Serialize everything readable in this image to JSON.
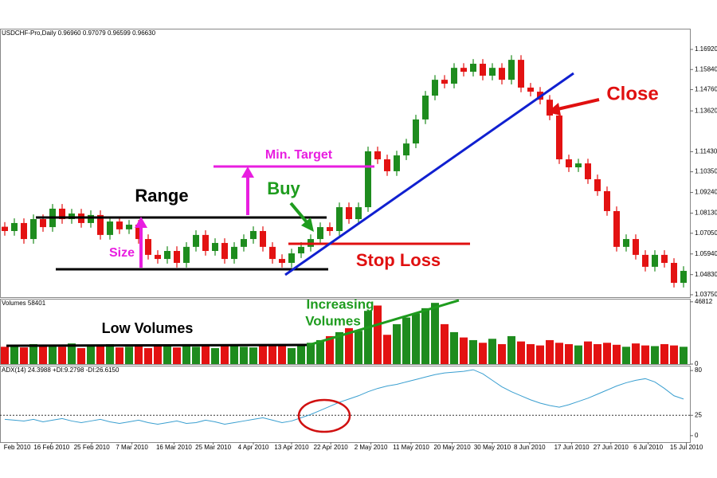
{
  "chart_data": [
    {
      "type": "candlestick",
      "title": "USDCHF-Pro,Daily  0.96960 0.97079 0.96599 0.96630",
      "up_color": "#1e8c1e",
      "down_color": "#e31212",
      "ylim": [
        1.0362,
        1.1799
      ],
      "yticks": [
        {
          "value": 1.0375,
          "label": "1.03750"
        },
        {
          "value": 1.0483,
          "label": "1.04830"
        },
        {
          "value": 1.0594,
          "label": "1.05940"
        },
        {
          "value": 1.0705,
          "label": "1.07050"
        },
        {
          "value": 1.0813,
          "label": "1.08130"
        },
        {
          "value": 1.0924,
          "label": "1.09240"
        },
        {
          "value": 1.1035,
          "label": "1.10350"
        },
        {
          "value": 1.1143,
          "label": "1.11430"
        },
        {
          "value": 1.1362,
          "label": "1.13620"
        },
        {
          "value": 1.1476,
          "label": "1.14760"
        },
        {
          "value": 1.1584,
          "label": "1.15840"
        },
        {
          "value": 1.1692,
          "label": "1.16920"
        }
      ],
      "open": [
        1.074,
        1.0717,
        1.076,
        1.0674,
        1.0781,
        1.0738,
        1.0837,
        1.0781,
        1.0811,
        1.076,
        1.0803,
        1.0696,
        1.0768,
        1.0726,
        1.0751,
        1.0674,
        1.0589,
        1.0567,
        1.061,
        1.0546,
        1.0632,
        1.0696,
        1.061,
        1.0653,
        1.0567,
        1.0632,
        1.0674,
        1.0717,
        1.0632,
        1.0567,
        1.0546,
        1.0597,
        1.0632,
        1.0674,
        1.0738,
        1.0717,
        1.0845,
        1.0781,
        1.0845,
        1.1145,
        1.1102,
        1.1038,
        1.1123,
        1.1187,
        1.1316,
        1.1444,
        1.1529,
        1.1508,
        1.1593,
        1.1572,
        1.1615,
        1.1551,
        1.1593,
        1.1529,
        1.1636,
        1.1487,
        1.1465,
        1.1422,
        1.1337,
        1.1102,
        1.1059,
        1.108,
        1.0995,
        1.0931,
        1.0824,
        1.0632,
        1.0674,
        1.0589,
        1.0525,
        1.0589,
        1.0546,
        1.0439
      ],
      "high": [
        1.0765,
        1.0785,
        1.0785,
        1.0806,
        1.0806,
        1.0862,
        1.0862,
        1.0836,
        1.0836,
        1.0828,
        1.0828,
        1.0793,
        1.0793,
        1.0776,
        1.0776,
        1.0699,
        1.0614,
        1.0635,
        1.0635,
        1.0657,
        1.0721,
        1.0721,
        1.0678,
        1.0678,
        1.0657,
        1.0699,
        1.0742,
        1.0742,
        1.0657,
        1.0592,
        1.0622,
        1.0657,
        1.0699,
        1.0763,
        1.0763,
        1.087,
        1.087,
        1.087,
        1.117,
        1.117,
        1.1127,
        1.1148,
        1.1212,
        1.1341,
        1.1469,
        1.1554,
        1.1554,
        1.1618,
        1.1618,
        1.164,
        1.164,
        1.1618,
        1.1618,
        1.1661,
        1.1661,
        1.1512,
        1.149,
        1.1447,
        1.1362,
        1.1127,
        1.1105,
        1.1105,
        1.102,
        1.0956,
        1.0849,
        1.0699,
        1.0699,
        1.0614,
        1.0614,
        1.0614,
        1.0571,
        1.0528
      ],
      "low": [
        1.0692,
        1.0692,
        1.0649,
        1.0649,
        1.0713,
        1.0713,
        1.0756,
        1.0756,
        1.0735,
        1.0735,
        1.0671,
        1.0671,
        1.0701,
        1.0701,
        1.0649,
        1.0564,
        1.0542,
        1.0542,
        1.0521,
        1.0521,
        1.0607,
        1.0585,
        1.0585,
        1.0542,
        1.0542,
        1.0607,
        1.0649,
        1.0607,
        1.0542,
        1.0521,
        1.0521,
        1.0572,
        1.0607,
        1.0649,
        1.0692,
        1.0692,
        1.0756,
        1.0756,
        1.082,
        1.1077,
        1.1013,
        1.1013,
        1.1098,
        1.1162,
        1.1291,
        1.1419,
        1.1483,
        1.1483,
        1.1547,
        1.1547,
        1.1526,
        1.1526,
        1.1504,
        1.1504,
        1.1462,
        1.144,
        1.1397,
        1.1312,
        1.1077,
        1.1034,
        1.1034,
        1.097,
        1.0906,
        1.0799,
        1.0607,
        1.0607,
        1.0564,
        1.05,
        1.05,
        1.0521,
        1.0414,
        1.0414
      ],
      "close": [
        1.0717,
        1.076,
        1.0674,
        1.0781,
        1.0738,
        1.0837,
        1.0781,
        1.0811,
        1.076,
        1.0803,
        1.0696,
        1.0768,
        1.0726,
        1.0751,
        1.0674,
        1.0589,
        1.0567,
        1.061,
        1.0546,
        1.0632,
        1.0696,
        1.061,
        1.0653,
        1.0567,
        1.0632,
        1.0674,
        1.0717,
        1.0632,
        1.0567,
        1.0546,
        1.0597,
        1.0632,
        1.0674,
        1.0738,
        1.0717,
        1.0845,
        1.0781,
        1.0845,
        1.1145,
        1.1102,
        1.1038,
        1.1123,
        1.1187,
        1.1316,
        1.1444,
        1.1529,
        1.1508,
        1.1593,
        1.1572,
        1.1615,
        1.1551,
        1.1593,
        1.1529,
        1.1636,
        1.1487,
        1.1465,
        1.1422,
        1.1337,
        1.1102,
        1.1059,
        1.108,
        1.0995,
        1.0931,
        1.0824,
        1.0632,
        1.0674,
        1.0589,
        1.0525,
        1.0589,
        1.0546,
        1.0439,
        1.0503
      ],
      "annotations": [
        "Range",
        "Size",
        "Min. Target",
        "Buy",
        "Stop Loss",
        "Close"
      ]
    },
    {
      "type": "bar",
      "title": "Volumes 58401",
      "ylim": [
        0,
        48500
      ],
      "yticks": [
        0,
        46812
      ],
      "values": [
        13000,
        14000,
        12500,
        15000,
        13500,
        14500,
        13000,
        15500,
        12000,
        14000,
        13500,
        15000,
        12500,
        13000,
        14500,
        12000,
        13500,
        14000,
        12500,
        15000,
        13000,
        14000,
        12000,
        13500,
        14500,
        13000,
        12500,
        14000,
        13500,
        15000,
        12000,
        14000,
        16000,
        18000,
        21000,
        24000,
        27000,
        25000,
        40000,
        44000,
        22000,
        30000,
        35000,
        38000,
        42000,
        46000,
        30000,
        24000,
        20000,
        18000,
        16000,
        19000,
        15000,
        21000,
        17000,
        15000,
        14000,
        18000,
        16000,
        15000,
        14000,
        17000,
        15000,
        16000,
        14500,
        13000,
        15500,
        14000,
        13500,
        15000,
        14000,
        13000
      ],
      "annotations": [
        "Low Volumes",
        [
          "Increasing",
          "Volumes"
        ]
      ]
    },
    {
      "type": "line",
      "title": "ADX(14) 24.3988 +DI:9.2798 -DI:26.6150",
      "color": "#3a9fd0",
      "ylim": [
        -8,
        85
      ],
      "yticks": [
        0,
        25,
        80
      ],
      "reference_line": 25,
      "values": [
        20,
        19,
        18,
        20,
        17,
        19,
        21,
        18,
        16,
        18,
        20,
        17,
        15,
        17,
        19,
        16,
        14,
        16,
        18,
        15,
        16,
        19,
        17,
        14,
        16,
        18,
        20,
        22,
        19,
        16,
        18,
        22,
        26,
        31,
        36,
        41,
        45,
        49,
        54,
        58,
        61,
        63,
        66,
        69,
        72,
        75,
        77,
        78,
        79,
        81,
        76,
        68,
        60,
        54,
        49,
        44,
        40,
        37,
        35,
        38,
        42,
        46,
        51,
        56,
        61,
        65,
        68,
        70,
        66,
        58,
        49,
        45
      ],
      "xticks": [
        {
          "value": 1.3,
          "label": "Feb 2010"
        },
        {
          "value": 4.9,
          "label": "16 Feb 2010"
        },
        {
          "value": 9.1,
          "label": "25 Feb 2010"
        },
        {
          "value": 13.3,
          "label": "7 Mar 2010"
        },
        {
          "value": 17.7,
          "label": "16 Mar 2010"
        },
        {
          "value": 21.8,
          "label": "25 Mar 2010"
        },
        {
          "value": 26,
          "label": "4 Apr 2010"
        },
        {
          "value": 30,
          "label": "13 Apr 2010"
        },
        {
          "value": 34.1,
          "label": "22 Apr 2010"
        },
        {
          "value": 38.3,
          "label": "2 May 2010"
        },
        {
          "value": 42.5,
          "label": "11 May 2010"
        },
        {
          "value": 46.8,
          "label": "20 May 2010"
        },
        {
          "value": 51,
          "label": "30 May 2010"
        },
        {
          "value": 54.9,
          "label": "8 Jun 2010"
        },
        {
          "value": 59.3,
          "label": "17 Jun 2010"
        },
        {
          "value": 63.4,
          "label": "27 Jun 2010"
        },
        {
          "value": 67.3,
          "label": "6 Jul 2010"
        },
        {
          "value": 71.3,
          "label": "15 Jul 2010"
        }
      ]
    }
  ]
}
